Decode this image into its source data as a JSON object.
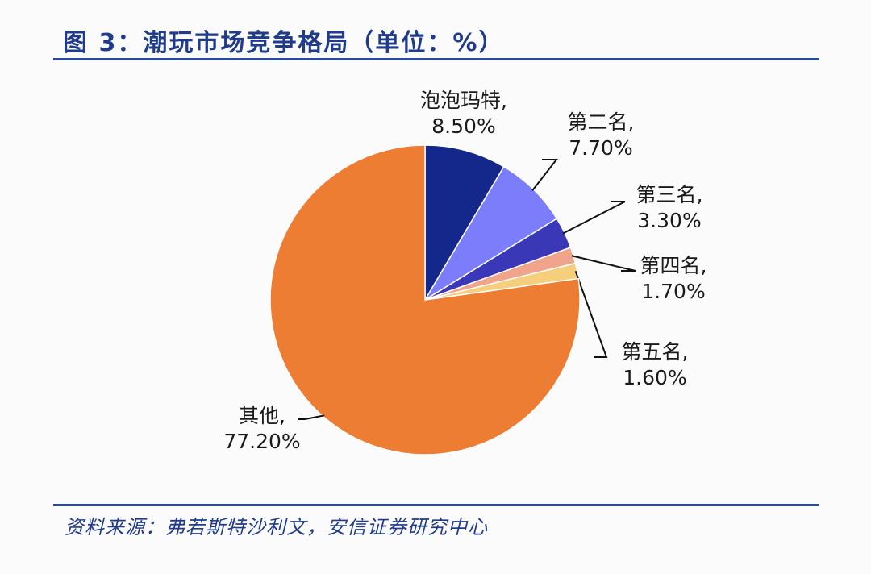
{
  "title": "图 3：潮玩市场竞争格局（单位：%）",
  "source": "资料来源：弗若斯特沙利文，安信证券研究中心",
  "chart_data": {
    "type": "pie",
    "title": "图 3：潮玩市场竞争格局（单位：%）",
    "unit": "%",
    "slices": [
      {
        "label": "泡泡玛特,",
        "value": 8.5,
        "value_label": "8.50%",
        "color": "#13288a"
      },
      {
        "label": "第二名,",
        "value": 7.7,
        "value_label": "7.70%",
        "color": "#7b7dfa"
      },
      {
        "label": "第三名,",
        "value": 3.3,
        "value_label": "3.30%",
        "color": "#3b38b8"
      },
      {
        "label": "第四名,",
        "value": 1.7,
        "value_label": "1.70%",
        "color": "#f0a58a"
      },
      {
        "label": "第五名,",
        "value": 1.6,
        "value_label": "1.60%",
        "color": "#f6cf7c"
      },
      {
        "label": "其他,",
        "value": 77.2,
        "value_label": "77.20%",
        "color": "#ec7d32"
      }
    ],
    "start": "12 o'clock",
    "direction": "clockwise",
    "legend": "none"
  }
}
